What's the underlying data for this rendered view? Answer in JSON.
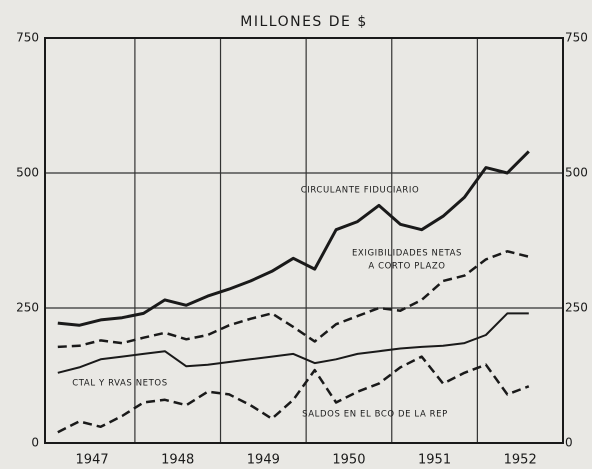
{
  "chart_data": {
    "type": "line",
    "title": "MILLONES DE $",
    "x": [
      1947.1,
      1947.35,
      1947.6,
      1947.85,
      1948.1,
      1948.35,
      1948.6,
      1948.85,
      1949.1,
      1949.35,
      1949.6,
      1949.85,
      1950.1,
      1950.35,
      1950.6,
      1950.85,
      1951.1,
      1951.35,
      1951.6,
      1951.85,
      1952.1,
      1952.35,
      1952.6
    ],
    "series": [
      {
        "name": "CIRCULANTE FIDUCIARIO",
        "color": "#1a1a1a",
        "dash": false,
        "width": 3,
        "values": [
          222,
          218,
          228,
          232,
          240,
          265,
          255,
          272,
          285,
          300,
          318,
          342,
          322,
          395,
          410,
          440,
          405,
          395,
          420,
          455,
          510,
          500,
          540
        ]
      },
      {
        "name": "EXIGIBILIDADES NETAS A CORTO PLAZO",
        "color": "#1a1a1a",
        "dash": true,
        "width": 2.5,
        "values": [
          178,
          180,
          190,
          185,
          195,
          204,
          192,
          200,
          218,
          230,
          240,
          215,
          188,
          220,
          235,
          250,
          245,
          265,
          300,
          310,
          340,
          355,
          345
        ]
      },
      {
        "name": "CTAL Y RVAS NETOS",
        "color": "#1a1a1a",
        "dash": false,
        "width": 2,
        "values": [
          130,
          140,
          155,
          160,
          165,
          170,
          142,
          145,
          150,
          155,
          160,
          165,
          148,
          155,
          165,
          170,
          175,
          178,
          180,
          185,
          200,
          240,
          240
        ]
      },
      {
        "name": "SALDOS EN EL BCO DE LA REP",
        "color": "#1a1a1a",
        "dash": true,
        "width": 2.5,
        "values": [
          20,
          40,
          30,
          50,
          75,
          80,
          70,
          95,
          90,
          70,
          45,
          80,
          135,
          75,
          95,
          110,
          140,
          160,
          110,
          130,
          145,
          90,
          105
        ]
      }
    ],
    "annotations": [
      "CIRCULANTE FIDUCIARIO",
      "EXIGIBILIDADES NETAS",
      "A CORTO PLAZO",
      "CTAL Y RVAS NETOS",
      "SALDOS EN EL BCO DE LA REP"
    ],
    "xlim": [
      1946.95,
      1953
    ],
    "xticks": [
      {
        "value": 1947.5,
        "label": "1947"
      },
      {
        "value": 1948.5,
        "label": "1948"
      },
      {
        "value": 1949.5,
        "label": "1949"
      },
      {
        "value": 1950.5,
        "label": "1950"
      },
      {
        "value": 1951.5,
        "label": "1951"
      },
      {
        "value": 1952.5,
        "label": "1952"
      }
    ],
    "xgrid": [
      1948,
      1949,
      1950,
      1951,
      1952
    ],
    "ylim": [
      0,
      750
    ],
    "yticks": [
      0,
      250,
      500,
      750
    ],
    "grid": true
  }
}
